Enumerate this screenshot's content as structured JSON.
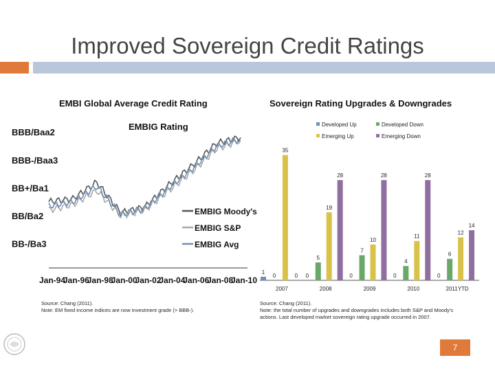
{
  "slide": {
    "title": "Improved Sovereign Credit Ratings",
    "page_number": "7",
    "left_subtitle": "EMBI Global Average Credit Rating",
    "right_subtitle": "Sovereign Rating Upgrades & Downgrades",
    "left_source_line1": "Source: Chang (2011).",
    "left_source_line2": "Note: EM fixed income indices are now investment grade (> BBB-).",
    "right_source_line1": "Source: Chang (2011).",
    "right_source_line2": "Note: the total number of upgrades and downgrades includes both S&P and Moody's",
    "right_source_line3": "actions. Last developed market sovereign rating upgrade occurred in 2007."
  },
  "colors": {
    "accent_orange": "#e07a3b",
    "header_blue": "#b8c7dc"
  },
  "chart_data": [
    {
      "type": "line",
      "title": "EMBIG Rating",
      "y_tick_labels": [
        "BBB/Baa2",
        "BBB-/Baa3",
        "BB+/Ba1",
        "BB/Ba2",
        "BB-/Ba3"
      ],
      "x_tick_labels": [
        "Jan-94",
        "Jan-96",
        "Jan-98",
        "Jan-00",
        "Jan-02",
        "Jan-04",
        "Jan-06",
        "Jan-08",
        "Jan-10"
      ],
      "x": [
        1994,
        1996,
        1998,
        2000,
        2002,
        2004,
        2006,
        2008,
        2010
      ],
      "series": [
        {
          "name": "EMBIG Moody's",
          "color": "#555555",
          "values": [
            -1.5,
            -1.4,
            -0.8,
            -1.9,
            -1.7,
            -0.9,
            -0.2,
            0.6,
            0.8
          ]
        },
        {
          "name": "EMBIG S&P",
          "color": "#a8a8a8",
          "values": [
            -1.8,
            -1.6,
            -1.1,
            -2.0,
            -1.8,
            -1.1,
            -0.4,
            0.4,
            0.7
          ]
        },
        {
          "name": "EMBIG Avg",
          "color": "#6e8fb5",
          "values": [
            -1.65,
            -1.5,
            -0.95,
            -1.95,
            -1.75,
            -1.0,
            -0.3,
            0.5,
            0.75
          ]
        }
      ],
      "ylim": [
        -2.6,
        1.6
      ]
    },
    {
      "type": "bar",
      "categories": [
        "2007",
        "2008",
        "2009",
        "2010",
        "2011YTD"
      ],
      "series": [
        {
          "name": "Developed Up",
          "color": "#6e8fc0",
          "values": [
            1,
            0,
            0,
            0,
            0
          ]
        },
        {
          "name": "Developed Down",
          "color": "#6aa86a",
          "values": [
            0,
            5,
            7,
            4,
            6
          ]
        },
        {
          "name": "Emerging Up",
          "color": "#d9c24a",
          "values": [
            35,
            19,
            10,
            11,
            12
          ]
        },
        {
          "name": "Emerging Down",
          "color": "#8f6fa0",
          "values": [
            0,
            28,
            28,
            28,
            14
          ]
        }
      ],
      "data_labels": [
        [
          "1",
          "0",
          "35",
          "0"
        ],
        [
          "0",
          "5",
          "19",
          "28"
        ],
        [
          "0",
          "7",
          "10",
          "28"
        ],
        [
          "0",
          "4",
          "11",
          "28"
        ],
        [
          "0",
          "6",
          "12",
          "14"
        ]
      ],
      "ylim": [
        0,
        38
      ]
    }
  ]
}
